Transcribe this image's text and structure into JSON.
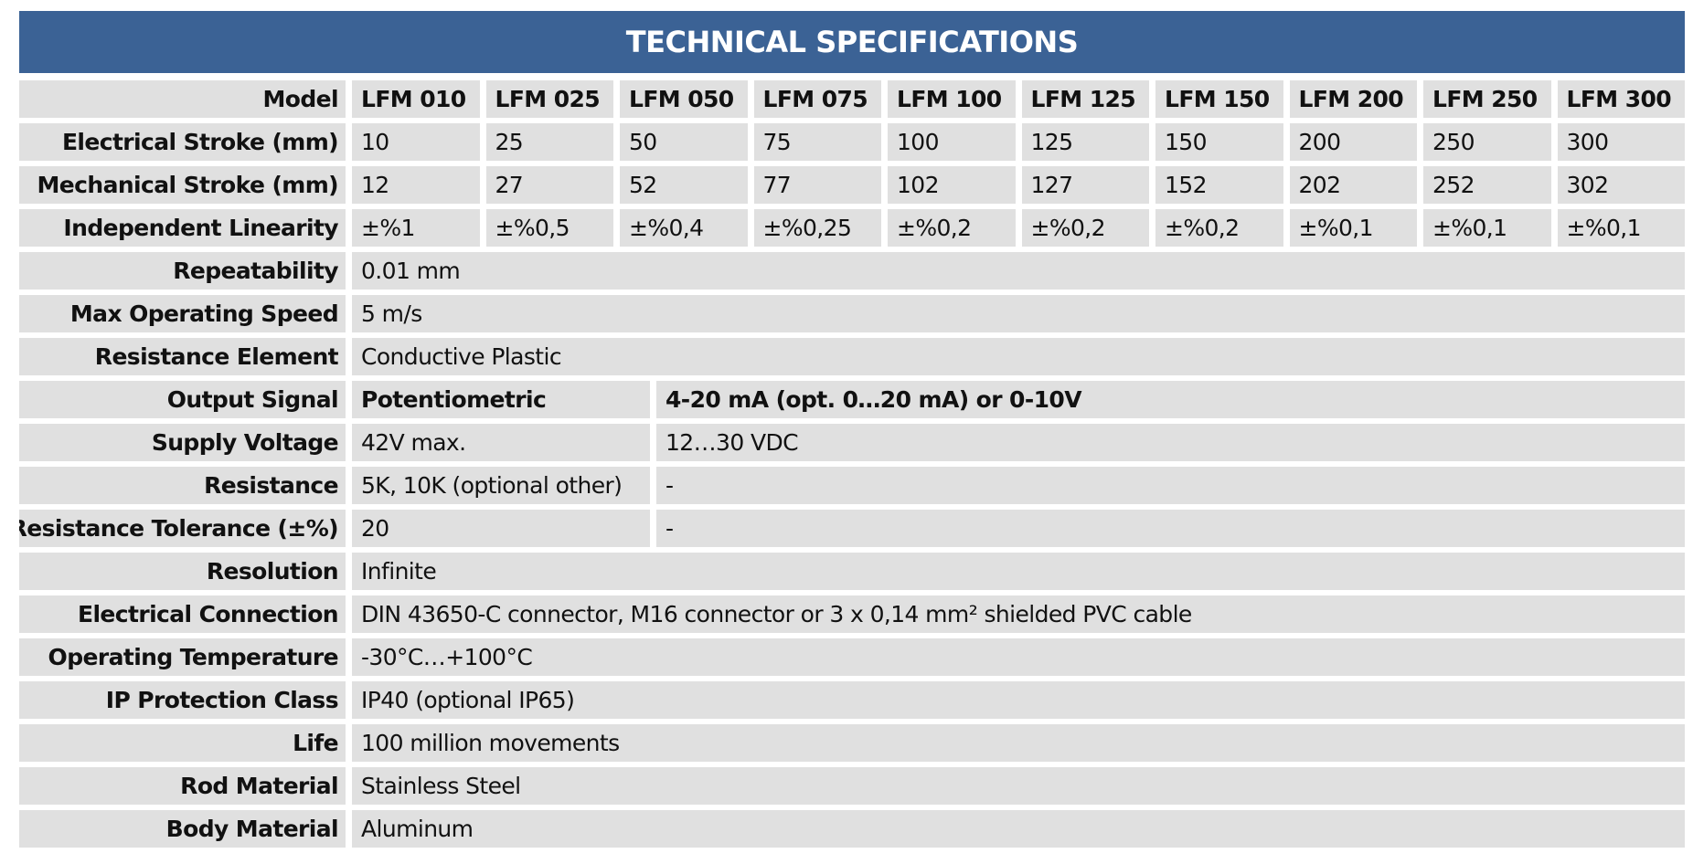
{
  "header": {
    "title": "TECHNICAL SPECIFICATIONS"
  },
  "table": {
    "rows": [
      {
        "label": "Model",
        "bold": true,
        "cells": [
          "LFM 010",
          "LFM 025",
          "LFM 050",
          "LFM 075",
          "LFM 100",
          "LFM 125",
          "LFM 150",
          "LFM 200",
          "LFM 250",
          "LFM 300"
        ]
      },
      {
        "label": "Electrical Stroke (mm)",
        "cells": [
          "10",
          "25",
          "50",
          "75",
          "100",
          "125",
          "150",
          "200",
          "250",
          "300"
        ]
      },
      {
        "label": "Mechanical Stroke (mm)",
        "cells": [
          "12",
          "27",
          "52",
          "77",
          "102",
          "127",
          "152",
          "202",
          "252",
          "302"
        ]
      },
      {
        "label": "Independent Linearity",
        "cells": [
          "±%1",
          "±%0,5",
          "±%0,4",
          "±%0,25",
          "±%0,2",
          "±%0,2",
          "±%0,2",
          "±%0,1",
          "±%0,1",
          "±%0,1"
        ]
      },
      {
        "label": "Repeatability",
        "cells": [
          "0.01 mm"
        ]
      },
      {
        "label": "Max Operating Speed",
        "cells": [
          "5 m/s"
        ]
      },
      {
        "label": "Resistance Element",
        "cells": [
          "Conductive Plastic"
        ]
      },
      {
        "label": "Output Signal",
        "bold": true,
        "cells": [
          "Potentiometric",
          "4-20 mA (opt. 0…20 mA) or 0-10V"
        ]
      },
      {
        "label": "Supply Voltage",
        "cells": [
          "42V max.",
          "12…30 VDC"
        ]
      },
      {
        "label": "Resistance",
        "cells": [
          "5K, 10K (optional other)",
          "-"
        ]
      },
      {
        "label": "Resistance Tolerance (±%)",
        "cells": [
          "20",
          "-"
        ]
      },
      {
        "label": "Resolution",
        "cells": [
          "Infinite"
        ]
      },
      {
        "label": "Electrical Connection",
        "cells": [
          "DIN 43650-C connector, M16 connector or 3 x 0,14 mm² shielded PVC cable"
        ]
      },
      {
        "label": "Operating Temperature",
        "cells": [
          "-30°C…+100°C"
        ]
      },
      {
        "label": "IP Protection Class",
        "cells": [
          "IP40 (optional IP65)"
        ]
      },
      {
        "label": "Life",
        "cells": [
          "100 million movements"
        ]
      },
      {
        "label": "Rod Material",
        "cells": [
          "Stainless Steel"
        ]
      },
      {
        "label": "Body Material",
        "cells": [
          "Aluminum"
        ]
      }
    ]
  }
}
